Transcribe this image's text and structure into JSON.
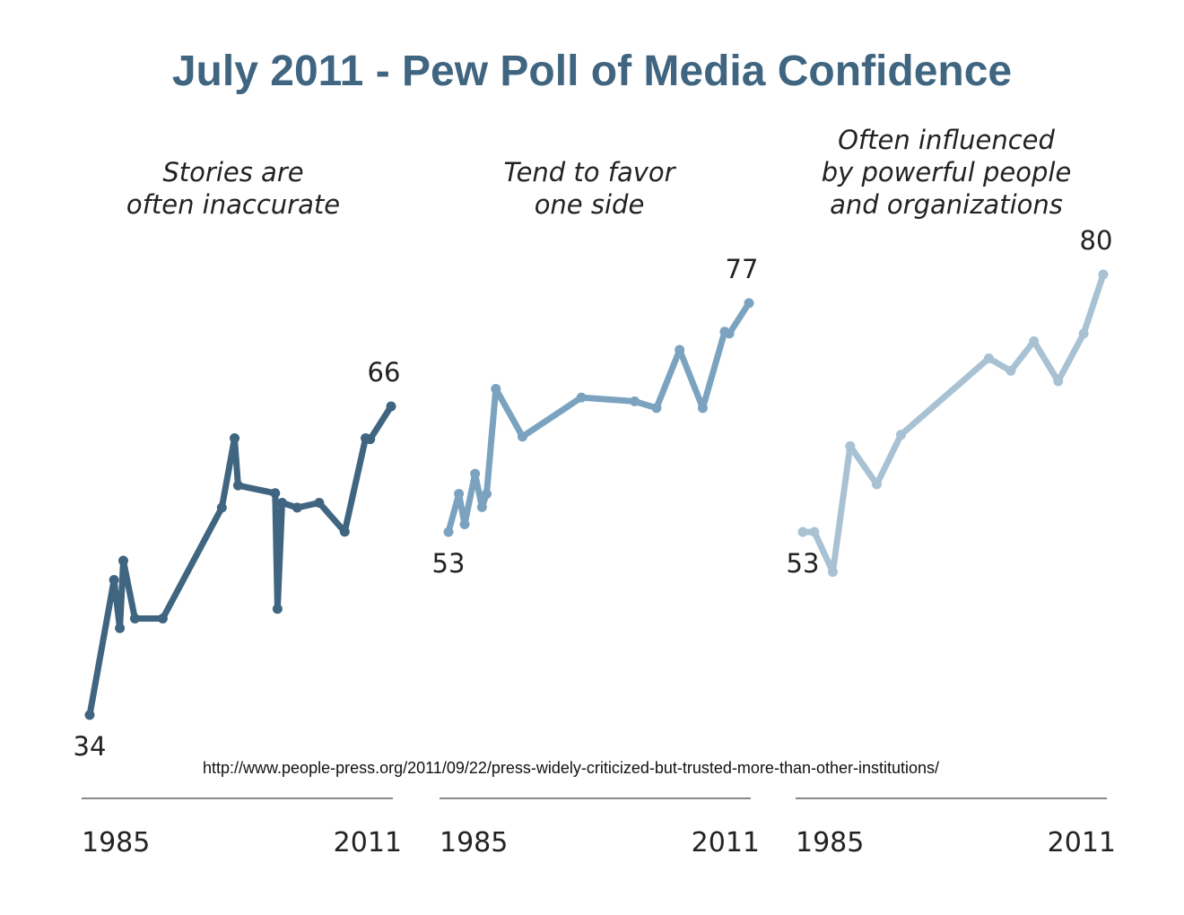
{
  "chart_data": {
    "type": "line",
    "title": "July 2011 - Pew Poll of Media Confidence",
    "source": "http://www.people-press.org/2011/09/22/press-widely-criticized-but-trusted-more-than-other-institutions/",
    "xlim": [
      1985,
      2011
    ],
    "grid": false,
    "panels": [
      {
        "name": "Stories are often inaccurate",
        "title_lines": [
          "Stories are",
          "often inaccurate"
        ],
        "color": "#3f6580",
        "x_tick_labels": [
          "1985",
          "2011"
        ],
        "start_label": "34",
        "end_label": "66",
        "x": [
          1985,
          1987.1,
          1987.6,
          1987.9,
          1988.9,
          1991.3,
          1996.4,
          1997.5,
          1997.8,
          2001.0,
          2001.2,
          2001.6,
          2002.9,
          2004.8,
          2007.0,
          2008.8,
          2009.2,
          2011
        ],
        "y": [
          34,
          48,
          43,
          50,
          44,
          44,
          55.5,
          62.7,
          57.8,
          57,
          45,
          56,
          55.5,
          56,
          53,
          62.7,
          62.6,
          66
        ]
      },
      {
        "name": "Tend to favor one side",
        "title_lines": [
          "Tend to favor",
          "one side"
        ],
        "color": "#7ba3c0",
        "x_tick_labels": [
          "1985",
          "2011"
        ],
        "start_label": "53",
        "end_label": "77",
        "x": [
          1985,
          1985.9,
          1986.4,
          1987.3,
          1987.9,
          1988.3,
          1989.1,
          1991.4,
          1996.5,
          2001.1,
          2003.0,
          2005.0,
          2007.0,
          2008.9,
          2009.3,
          2011
        ],
        "y": [
          53,
          57,
          53.8,
          59.1,
          55.6,
          57,
          68,
          63,
          67.1,
          66.7,
          66,
          72.1,
          66,
          74,
          73.8,
          77
        ]
      },
      {
        "name": "Often influenced by powerful people and organizations",
        "title_lines": [
          "Often influenced",
          "by powerful people",
          "and organizations"
        ],
        "color": "#a8c2d4",
        "x_tick_labels": [
          "1985",
          "2011"
        ],
        "start_label": "53",
        "end_label": "80",
        "x": [
          1985,
          1986.0,
          1987.6,
          1989.1,
          1991.4,
          1993.5,
          2001.1,
          2003.0,
          2005.0,
          2007.1,
          2009.3,
          2011
        ],
        "y": [
          53,
          53,
          48.8,
          62,
          58,
          63.2,
          71.2,
          69.9,
          73,
          68.8,
          73.8,
          80
        ]
      }
    ]
  }
}
